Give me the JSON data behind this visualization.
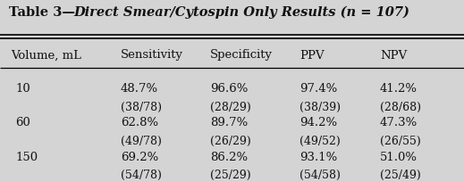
{
  "bg_color": "#d4d4d4",
  "text_color": "#111111",
  "title_bold": "Table 3—",
  "title_italic": "Direct Smear/Cytospin Only Results (n = 107)",
  "col_headers": [
    "Volume, mL",
    "Sensitivity",
    "Specificity",
    "PPV",
    "NPV"
  ],
  "col_xs_inches": [
    0.12,
    1.35,
    2.35,
    3.35,
    4.25
  ],
  "rows": [
    {
      "label": "10",
      "values": [
        "48.7%",
        "96.6%",
        "97.4%",
        "41.2%"
      ],
      "sub": [
        "(38/78)",
        "(28/29)",
        "(38/39)",
        "(28/68)"
      ]
    },
    {
      "label": "60",
      "values": [
        "62.8%",
        "89.7%",
        "94.2%",
        "47.3%"
      ],
      "sub": [
        "(49/78)",
        "(26/29)",
        "(49/52)",
        "(26/55)"
      ]
    },
    {
      "label": "150",
      "values": [
        "69.2%",
        "86.2%",
        "93.1%",
        "51.0%"
      ],
      "sub": [
        "(54/78)",
        "(25/29)",
        "(54/58)",
        "(25/49)"
      ]
    }
  ],
  "title_fontsize": 10.5,
  "header_fontsize": 9.5,
  "data_fontsize": 9.5,
  "sub_fontsize": 9.0,
  "fig_width": 5.19,
  "fig_height": 2.05,
  "dpi": 100
}
